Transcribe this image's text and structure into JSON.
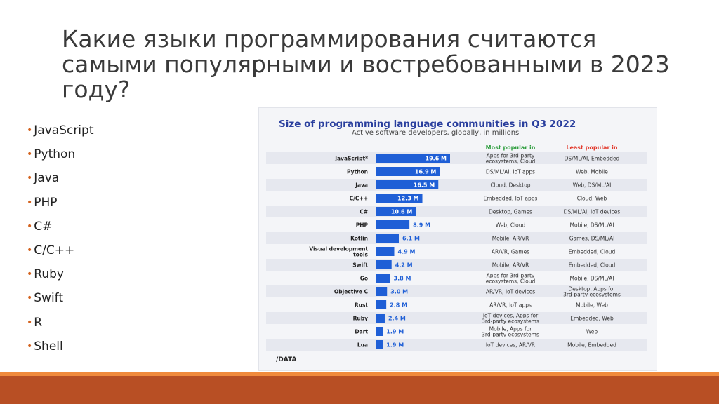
{
  "slide": {
    "title": "Какие языки программирования считаются самыми популярными и востребованными в 2023 году?",
    "bullets": [
      "JavaScript",
      " Python",
      "Java",
      "PHP",
      "C#",
      "C/C++",
      "Ruby",
      "Swift",
      "R",
      "Shell"
    ],
    "bullet_color": "#d4631f"
  },
  "chart_data": {
    "type": "bar",
    "orientation": "horizontal",
    "title": "Size of programming language communities in Q3 2022",
    "subtitle": "Active software developers, globally, in millions",
    "col_most": "Most popular in",
    "col_least": "Least popular in",
    "categories": [
      "JavaScript*",
      "Python",
      "Java",
      "C/C++",
      "C#",
      "PHP",
      "Kotlin",
      "Visual development tools",
      "Swift",
      "Go",
      "Objective C",
      "Rust",
      "Ruby",
      "Dart",
      "Lua"
    ],
    "values": [
      19.6,
      16.9,
      16.5,
      12.3,
      10.6,
      8.9,
      6.1,
      4.9,
      4.2,
      3.8,
      3.0,
      2.8,
      2.4,
      1.9,
      1.9
    ],
    "value_labels": [
      "19.6 M",
      "16.9 M",
      "16.5 M",
      "12.3 M",
      "10.6 M",
      "8.9 M",
      "6.1 M",
      "4.9 M",
      "4.2 M",
      "3.8 M",
      "3.0 M",
      "2.8 M",
      "2.4 M",
      "1.9 M",
      "1.9 M"
    ],
    "most_popular": [
      "Apps for 3rd-party ecosystems, Cloud",
      "DS/ML/AI, IoT apps",
      "Cloud, Desktop",
      "Embedded, IoT apps",
      "Desktop, Games",
      "Web, Cloud",
      "Mobile, AR/VR",
      "AR/VR, Games",
      "Mobile, AR/VR",
      "Apps for 3rd-party ecosystems, Cloud",
      "AR/VR, IoT devices",
      "AR/VR, IoT apps",
      "IoT devices, Apps for 3rd-party ecosystems",
      "Mobile, Apps for 3rd-party ecosystems",
      "IoT devices, AR/VR"
    ],
    "least_popular": [
      "DS/ML/AI, Embedded",
      "Web, Mobile",
      "Web, DS/ML/AI",
      "Cloud, Web",
      "DS/ML/AI, IoT devices",
      "Mobile, DS/ML/AI",
      "Games, DS/ML/AI",
      "Embedded, Cloud",
      "Embedded, Cloud",
      "Mobile, DS/ML/AI",
      "Desktop, Apps for 3rd-party ecosystems",
      "Mobile, Web",
      "Embedded, Web",
      "Web",
      "Mobile, Embedded"
    ],
    "xlim": [
      0,
      20
    ],
    "source": "/DATA",
    "colors": {
      "bar": "#1f5fd6",
      "title": "#2a3f9e",
      "subtitle": "#444444",
      "most": "#2f9e3f",
      "least": "#e23b2e",
      "row": "#e6e8ef"
    }
  }
}
